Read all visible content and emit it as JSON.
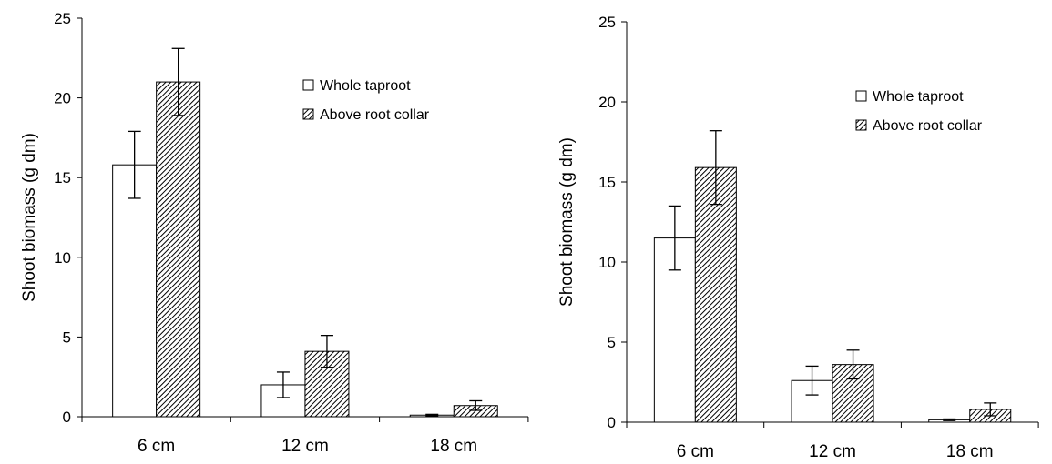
{
  "chart_data": [
    {
      "type": "bar",
      "categories": [
        "6 cm",
        "12 cm",
        "18 cm"
      ],
      "ylabel": "Shoot biomass (g dm)",
      "ylim": [
        0,
        25
      ],
      "yticks": [
        "0",
        "5",
        "10",
        "15",
        "20",
        "25"
      ],
      "grid": false,
      "legend_position": "top-right",
      "series": [
        {
          "name": "Whole taproot",
          "fill": "#ffffff",
          "values": [
            15.8,
            2.0,
            0.1
          ],
          "errors": [
            2.1,
            0.8,
            0.05
          ]
        },
        {
          "name": "Above root collar",
          "fill": "hatched",
          "values": [
            21.0,
            4.1,
            0.7
          ],
          "errors": [
            2.1,
            1.0,
            0.3
          ]
        }
      ]
    },
    {
      "type": "bar",
      "categories": [
        "6 cm",
        "12 cm",
        "18 cm"
      ],
      "ylabel": "Shoot biomass (g dm)",
      "ylim": [
        0,
        25
      ],
      "yticks": [
        "0",
        "5",
        "10",
        "15",
        "20",
        "25"
      ],
      "grid": false,
      "legend_position": "top-right",
      "series": [
        {
          "name": "Whole taproot",
          "fill": "#ffffff",
          "values": [
            11.5,
            2.6,
            0.15
          ],
          "errors": [
            2.0,
            0.9,
            0.05
          ]
        },
        {
          "name": "Above root collar",
          "fill": "hatched",
          "values": [
            15.9,
            3.6,
            0.8
          ],
          "errors": [
            2.3,
            0.9,
            0.4
          ]
        }
      ]
    }
  ]
}
